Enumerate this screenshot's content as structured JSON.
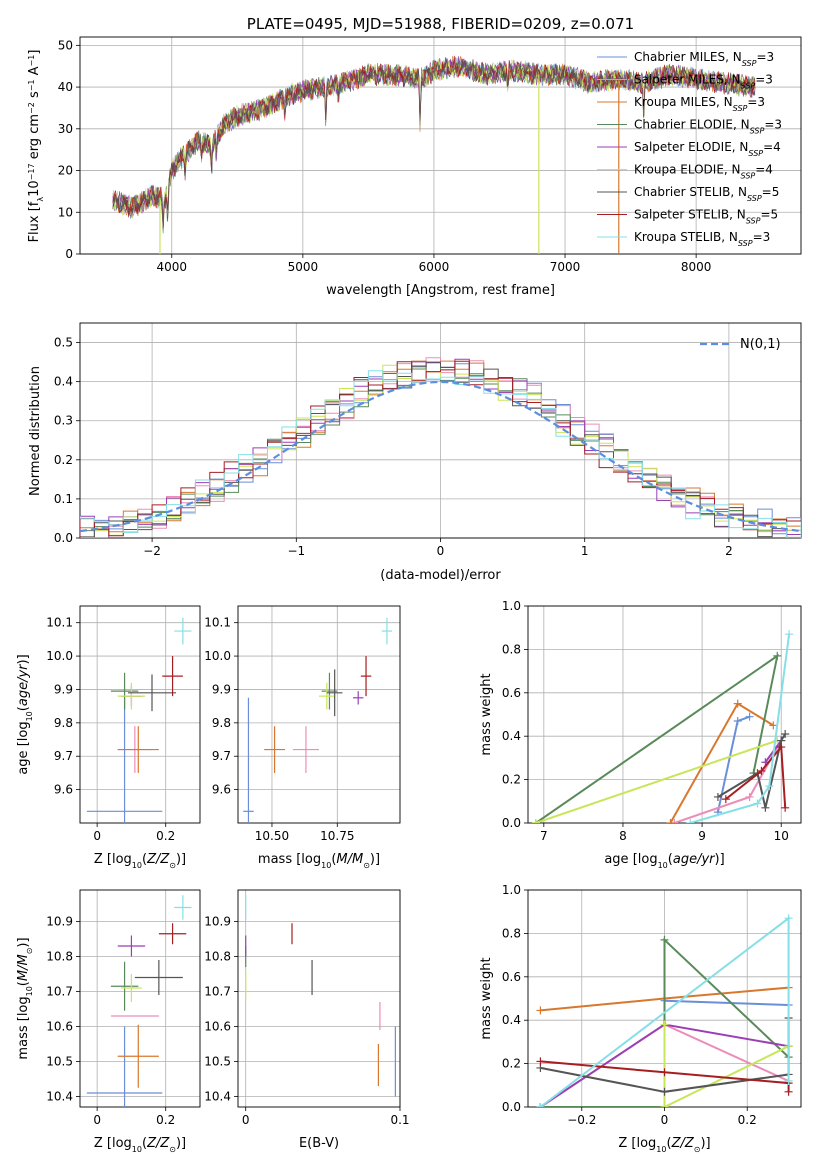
{
  "colors": [
    "#6a8fd8",
    "#ec8db9",
    "#d8782f",
    "#5a8a5a",
    "#9b3fb5",
    "#c9e55a",
    "#555555",
    "#a61e22",
    "#86dfe6"
  ],
  "ssp_legend": [
    "Chabrier MILES, N_SSP=3",
    "Salpeter MILES, N_SSP=3",
    "Kroupa MILES, N_SSP=3",
    "Chabrier ELODIE, N_SSP=3",
    "Salpeter ELODIE, N_SSP=4",
    "Kroupa ELODIE, N_SSP=4",
    "Chabrier STELIB, N_SSP=5",
    "Salpeter STELIB, N_SSP=5",
    "Kroupa STELIB, N_SSP=3"
  ],
  "chart_data": [
    {
      "id": "spectrum",
      "type": "line",
      "title": "PLATE=0495, MJD=51988, FIBERID=0209, z=0.071",
      "xlabel": "wavelength [Angstrom, rest frame]",
      "ylabel": "Flux [f_λ10^−17 erg cm^−2 s^−1 A^−1]",
      "xlim": [
        3300,
        8800
      ],
      "ylim": [
        0,
        52
      ],
      "xticks": [
        4000,
        5000,
        6000,
        7000,
        8000
      ],
      "yticks": [
        0,
        10,
        20,
        30,
        40,
        50
      ],
      "continuum": [
        [
          3550,
          13
        ],
        [
          3700,
          11
        ],
        [
          3850,
          14
        ],
        [
          3950,
          13
        ],
        [
          4000,
          20
        ],
        [
          4100,
          24
        ],
        [
          4200,
          27
        ],
        [
          4300,
          26
        ],
        [
          4400,
          31
        ],
        [
          4500,
          33
        ],
        [
          4700,
          35
        ],
        [
          4900,
          38
        ],
        [
          5000,
          39
        ],
        [
          5150,
          40
        ],
        [
          5300,
          41
        ],
        [
          5500,
          43
        ],
        [
          5700,
          43
        ],
        [
          5900,
          42
        ],
        [
          6000,
          44
        ],
        [
          6200,
          45
        ],
        [
          6400,
          43
        ],
        [
          6600,
          44
        ],
        [
          6800,
          43
        ],
        [
          7000,
          43
        ],
        [
          7200,
          41
        ],
        [
          7400,
          42
        ],
        [
          7600,
          41
        ],
        [
          7800,
          43
        ],
        [
          8000,
          42
        ],
        [
          8200,
          41
        ],
        [
          8450,
          40
        ]
      ],
      "absorption_features": [
        [
          3934,
          6
        ],
        [
          3969,
          6
        ],
        [
          4102,
          4
        ],
        [
          4227,
          3
        ],
        [
          4304,
          5
        ],
        [
          4340,
          4
        ],
        [
          4861,
          3
        ],
        [
          5175,
          8
        ],
        [
          5270,
          3
        ],
        [
          5894,
          10
        ],
        [
          6563,
          4
        ],
        [
          7600,
          8
        ]
      ],
      "dropouts": [
        3910,
        6800,
        7410
      ]
    },
    {
      "id": "residuals",
      "type": "step",
      "xlabel": "(data-model)/error",
      "ylabel": "Normed distribution",
      "xlim": [
        -2.5,
        2.5
      ],
      "ylim": [
        0,
        0.55
      ],
      "xticks": [
        -2,
        -1,
        0,
        1,
        2
      ],
      "yticks": [
        0.0,
        0.1,
        0.2,
        0.3,
        0.4,
        0.5
      ],
      "bin_width": 0.1,
      "reference_label": "N(0,1)"
    },
    {
      "id": "age_vs_Z",
      "type": "errorbar",
      "xlabel": "Z [log10(Z/Z⊙)]",
      "ylabel": "age  [log10(age/yr)]",
      "xlim": [
        -0.05,
        0.3
      ],
      "ylim": [
        9.5,
        10.15
      ],
      "xticks": [
        0.0,
        0.2
      ],
      "yticks": [
        9.6,
        9.7,
        9.8,
        9.9,
        10.0,
        10.1
      ],
      "points": [
        {
          "x": 0.08,
          "y": 9.535,
          "xerr": 0.11,
          "yerr": 0.34
        },
        {
          "x": 0.11,
          "y": 9.72,
          "xerr": 0.05,
          "yerr": 0.07
        },
        {
          "x": 0.12,
          "y": 9.72,
          "xerr": 0.06,
          "yerr": 0.07
        },
        {
          "x": 0.08,
          "y": 9.895,
          "xerr": 0.04,
          "yerr": 0.055
        },
        {
          "x": 0.1,
          "y": 9.88,
          "xerr": 0.03,
          "yerr": 0.03
        },
        {
          "x": 0.1,
          "y": 9.88,
          "xerr": 0.04,
          "yerr": 0.04
        },
        {
          "x": 0.16,
          "y": 9.89,
          "xerr": 0.07,
          "yerr": 0.055
        },
        {
          "x": 0.22,
          "y": 9.94,
          "xerr": 0.03,
          "yerr": 0.06
        },
        {
          "x": 0.25,
          "y": 10.075,
          "xerr": 0.025,
          "yerr": 0.04
        }
      ]
    },
    {
      "id": "age_vs_mass",
      "type": "errorbar",
      "xlabel": "mass [log10(M/M⊙)]",
      "ylabel": "",
      "xlim": [
        10.37,
        10.99
      ],
      "ylim": [
        9.5,
        10.15
      ],
      "xticks": [
        10.5,
        10.75
      ],
      "tick_labels": [
        "10.50",
        "10.75"
      ],
      "yticks": [
        9.6,
        9.7,
        9.8,
        9.9,
        10.0,
        10.1
      ],
      "points": [
        {
          "x": 10.41,
          "y": 9.535,
          "xerr": 0.02,
          "yerr": 0.34
        },
        {
          "x": 10.63,
          "y": 9.72,
          "xerr": 0.05,
          "yerr": 0.07
        },
        {
          "x": 10.51,
          "y": 9.72,
          "xerr": 0.04,
          "yerr": 0.07
        },
        {
          "x": 10.72,
          "y": 9.895,
          "xerr": 0.03,
          "yerr": 0.055
        },
        {
          "x": 10.83,
          "y": 9.875,
          "xerr": 0.02,
          "yerr": 0.02
        },
        {
          "x": 10.71,
          "y": 9.88,
          "xerr": 0.03,
          "yerr": 0.04
        },
        {
          "x": 10.74,
          "y": 9.89,
          "xerr": 0.03,
          "yerr": 0.07
        },
        {
          "x": 10.86,
          "y": 9.94,
          "xerr": 0.02,
          "yerr": 0.06
        },
        {
          "x": 10.94,
          "y": 10.075,
          "xerr": 0.02,
          "yerr": 0.04
        }
      ]
    },
    {
      "id": "weight_vs_age",
      "type": "line",
      "xlabel": "age  [log10(age/yr)]",
      "ylabel": "mass weight",
      "xlim": [
        6.8,
        10.25
      ],
      "ylim": [
        0,
        1
      ],
      "xticks": [
        7,
        8,
        9,
        10
      ],
      "yticks": [
        0.0,
        0.2,
        0.4,
        0.6,
        0.8,
        1.0
      ],
      "series": [
        {
          "x": [
            9.2,
            9.45,
            9.6
          ],
          "y": [
            0.05,
            0.47,
            0.49
          ]
        },
        {
          "x": [
            8.65,
            9.6,
            10.0
          ],
          "y": [
            0.0,
            0.12,
            0.38
          ]
        },
        {
          "x": [
            8.6,
            9.45,
            9.9
          ],
          "y": [
            0.0,
            0.55,
            0.45
          ]
        },
        {
          "x": [
            6.9,
            9.95,
            9.65
          ],
          "y": [
            0.0,
            0.77,
            0.23
          ]
        },
        {
          "x": [
            9.8,
            10.0
          ],
          "y": [
            0.28,
            0.38
          ]
        },
        {
          "x": [
            6.9,
            9.95
          ],
          "y": [
            0.0,
            0.38
          ]
        },
        {
          "x": [
            9.2,
            9.7,
            9.8,
            10.0,
            10.05
          ],
          "y": [
            0.12,
            0.23,
            0.07,
            0.38,
            0.41
          ]
        },
        {
          "x": [
            9.3,
            9.75,
            10.0,
            10.05
          ],
          "y": [
            0.11,
            0.24,
            0.35,
            0.07
          ]
        },
        {
          "x": [
            8.85,
            9.7,
            9.85,
            10.1
          ],
          "y": [
            0.0,
            0.09,
            0.17,
            0.87
          ]
        }
      ]
    },
    {
      "id": "mass_vs_Z",
      "type": "errorbar",
      "xlabel": "Z [log10(Z/Z⊙)]",
      "ylabel": "mass [log10(M/M⊙)]",
      "xlim": [
        -0.05,
        0.3
      ],
      "ylim": [
        10.37,
        10.99
      ],
      "xticks": [
        0.0,
        0.2
      ],
      "yticks": [
        10.4,
        10.5,
        10.6,
        10.7,
        10.8,
        10.9
      ],
      "points": [
        {
          "x": 0.08,
          "y": 10.41,
          "xerr": 0.11,
          "yerr": 0.19
        },
        {
          "x": 0.11,
          "y": 10.63,
          "xerr": 0.07,
          "yerr": 0.0
        },
        {
          "x": 0.12,
          "y": 10.515,
          "xerr": 0.06,
          "yerr": 0.09
        },
        {
          "x": 0.08,
          "y": 10.715,
          "xerr": 0.04,
          "yerr": 0.07
        },
        {
          "x": 0.1,
          "y": 10.83,
          "xerr": 0.04,
          "yerr": 0.03
        },
        {
          "x": 0.1,
          "y": 10.71,
          "xerr": 0.03,
          "yerr": 0.04
        },
        {
          "x": 0.18,
          "y": 10.74,
          "xerr": 0.07,
          "yerr": 0.05
        },
        {
          "x": 0.22,
          "y": 10.865,
          "xerr": 0.04,
          "yerr": 0.03
        },
        {
          "x": 0.25,
          "y": 10.94,
          "xerr": 0.025,
          "yerr": 0.035
        }
      ]
    },
    {
      "id": "mass_vs_EBV",
      "type": "errorbar",
      "xlabel": "E(B-V)",
      "ylabel": "",
      "xlim": [
        -0.005,
        0.1
      ],
      "ylim": [
        10.37,
        10.99
      ],
      "xticks": [
        0.0,
        0.1
      ],
      "yticks": [
        10.4,
        10.5,
        10.6,
        10.7,
        10.8,
        10.9
      ],
      "points": [
        {
          "x": 0.097,
          "y": 10.5,
          "xerr": 0,
          "yerr": 0.1
        },
        {
          "x": 0.087,
          "y": 10.63,
          "xerr": 0,
          "yerr": 0.04
        },
        {
          "x": 0.086,
          "y": 10.49,
          "xerr": 0,
          "yerr": 0.06
        },
        {
          "x": 0.0,
          "y": 10.8,
          "xerr": 0,
          "yerr": 0.03
        },
        {
          "x": 0.0,
          "y": 10.83,
          "xerr": 0,
          "yerr": 0.03
        },
        {
          "x": 0.0,
          "y": 10.72,
          "xerr": 0,
          "yerr": 0.04
        },
        {
          "x": 0.043,
          "y": 10.74,
          "xerr": 0,
          "yerr": 0.05
        },
        {
          "x": 0.03,
          "y": 10.865,
          "xerr": 0,
          "yerr": 0.03
        },
        {
          "x": 0.0,
          "y": 10.94,
          "xerr": 0,
          "yerr": 0.035
        }
      ]
    },
    {
      "id": "weight_vs_Z",
      "type": "line",
      "xlabel": "Z [log10(Z/Z⊙)]",
      "ylabel": "mass weight",
      "xlim": [
        -0.33,
        0.33
      ],
      "ylim": [
        0,
        1
      ],
      "xticks": [
        -0.2,
        0.0,
        0.2
      ],
      "yticks": [
        0.0,
        0.2,
        0.4,
        0.6,
        0.8,
        1.0
      ],
      "series": [
        {
          "x": [
            0.0,
            0.3
          ],
          "y": [
            0.49,
            0.47
          ]
        },
        {
          "x": [
            -0.3,
            0.0,
            0.3
          ],
          "y": [
            0.0,
            0.38,
            0.12
          ]
        },
        {
          "x": [
            -0.3,
            0.0,
            0.3
          ],
          "y": [
            0.445,
            0.5,
            0.55
          ]
        },
        {
          "x": [
            -0.3,
            0.0,
            0.0,
            0.3
          ],
          "y": [
            0.0,
            0.0,
            0.77,
            0.23
          ]
        },
        {
          "x": [
            -0.3,
            0.0,
            0.3
          ],
          "y": [
            0.0,
            0.38,
            0.28
          ]
        },
        {
          "x": [
            0.0,
            0.0,
            0.3
          ],
          "y": [
            0.38,
            0.0,
            0.28
          ]
        },
        {
          "x": [
            -0.3,
            0.0,
            0.3,
            0.3
          ],
          "y": [
            0.18,
            0.07,
            0.15,
            0.41
          ]
        },
        {
          "x": [
            -0.3,
            0.0,
            0.3,
            0.3
          ],
          "y": [
            0.21,
            0.16,
            0.11,
            0.07
          ]
        },
        {
          "x": [
            -0.3,
            0.3,
            0.3
          ],
          "y": [
            0.0,
            0.87,
            0.12
          ]
        }
      ]
    }
  ]
}
